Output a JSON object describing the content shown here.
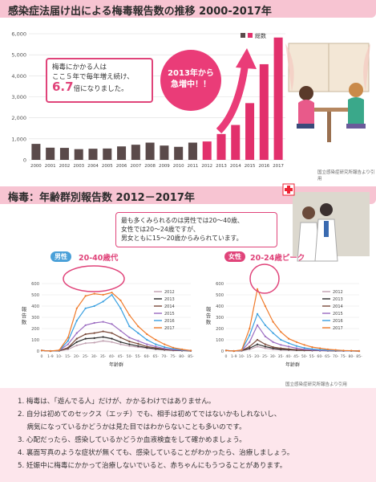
{
  "section1": {
    "title": "感染症法届け出による梅毒報告数の推移 2000-2017年"
  },
  "section2": {
    "title": "梅毒：年齢群別報告数 2012－2017年"
  },
  "callout": {
    "line1": "梅毒にかかる人は",
    "line2": "ここ５年で毎年増え続け、",
    "big": "6.7",
    "line3": "倍になりました。"
  },
  "badge": {
    "line1": "2013年から",
    "line2": "急増中！！"
  },
  "note": {
    "line1": "最も多くみられるのは男性では20～40歳、",
    "line2": "女性では20～24歳ですが、",
    "line3": "男女ともに15～20歳からみられています。"
  },
  "source1": "国立感染症研究所報告より引用",
  "source2": "国立感染症研究所報告より引用",
  "male_tag": "男性",
  "female_tag": "女性",
  "male_peak": "20-40歳代",
  "female_peak": "20-24歳ピーク",
  "list": [
    "1. 梅毒は、「遊んでる人」だけが、かかるわけではありません。",
    "2. 自分は初めてのセックス（エッチ）でも、相手は初めてではないかもしれないし、",
    "　  病気になっているかどうかは見た目ではわからないことも多いのです。",
    "3. 心配だったら、感染しているかどうか血液検査をして確かめましょう。",
    "4. 裏面写真のような症状が無くても、感染していることがわかったら、治療しましょう。",
    "5. 妊娠中に梅毒にかかって治療しないでいると、赤ちゃんにもうつることがあります。"
  ],
  "colors": {
    "accent": "#e0447a",
    "band": "#f7c4d2",
    "bar_normal": "#5a4a4a",
    "bar_recent": "#e2306c"
  },
  "chart_data": [
    {
      "type": "bar",
      "title": "",
      "legend": [
        "総数"
      ],
      "categories": [
        "2000",
        "2001",
        "2002",
        "2003",
        "2004",
        "2005",
        "2006",
        "2007",
        "2008",
        "2009",
        "2010",
        "2011",
        "2012",
        "2013",
        "2014",
        "2015",
        "2016",
        "2017"
      ],
      "values": [
        760,
        580,
        570,
        510,
        530,
        540,
        640,
        720,
        820,
        680,
        620,
        820,
        875,
        1230,
        1660,
        2700,
        4550,
        5820
      ],
      "yticks": [
        "0",
        "1,000",
        "2,000",
        "3,000",
        "4,000",
        "5,000",
        "6,000"
      ],
      "ylim": [
        0,
        6000
      ]
    },
    {
      "type": "line",
      "title": "",
      "ylabel": "報告数",
      "xlabel": "年齢群",
      "ylim": [
        0,
        600
      ],
      "yticks": [
        "0",
        "100",
        "200",
        "300",
        "400",
        "500",
        "600"
      ],
      "categories": [
        "0",
        "1-9",
        "10-",
        "15-",
        "20-",
        "25-",
        "30-",
        "35-",
        "40-",
        "45-",
        "50-",
        "55-",
        "60-",
        "65-",
        "70-",
        "75-",
        "80-",
        "85-"
      ],
      "series": [
        {
          "name": "2012",
          "values": [
            5,
            0,
            2,
            15,
            50,
            70,
            75,
            90,
            80,
            60,
            45,
            35,
            25,
            15,
            10,
            5,
            3,
            2
          ]
        },
        {
          "name": "2013",
          "values": [
            5,
            0,
            3,
            25,
            80,
            110,
            115,
            125,
            110,
            80,
            60,
            45,
            30,
            20,
            12,
            7,
            4,
            2
          ]
        },
        {
          "name": "2014",
          "values": [
            5,
            0,
            3,
            30,
            110,
            150,
            160,
            175,
            160,
            120,
            85,
            65,
            40,
            28,
            15,
            8,
            5,
            3
          ]
        },
        {
          "name": "2015",
          "values": [
            5,
            0,
            5,
            60,
            160,
            230,
            250,
            260,
            240,
            180,
            120,
            90,
            60,
            40,
            22,
            12,
            7,
            3
          ]
        },
        {
          "name": "2016",
          "values": [
            5,
            0,
            5,
            90,
            270,
            380,
            400,
            440,
            500,
            380,
            220,
            160,
            100,
            60,
            35,
            20,
            10,
            5
          ]
        },
        {
          "name": "2017",
          "values": [
            5,
            0,
            8,
            120,
            380,
            490,
            510,
            500,
            520,
            450,
            320,
            220,
            150,
            100,
            60,
            30,
            15,
            5
          ]
        }
      ]
    },
    {
      "type": "line",
      "title": "",
      "ylabel": "報告数",
      "xlabel": "年齢群",
      "ylim": [
        0,
        600
      ],
      "yticks": [
        "0",
        "100",
        "200",
        "300",
        "400",
        "500",
        "600"
      ],
      "categories": [
        "0",
        "1-9",
        "10-",
        "15-",
        "20-",
        "25-",
        "30-",
        "35-",
        "40-",
        "45-",
        "50-",
        "55-",
        "60-",
        "65-",
        "70-",
        "75-",
        "80-",
        "85-"
      ],
      "series": [
        {
          "name": "2012",
          "values": [
            5,
            0,
            3,
            15,
            40,
            25,
            15,
            10,
            8,
            6,
            5,
            4,
            3,
            2,
            2,
            1,
            1,
            0
          ]
        },
        {
          "name": "2013",
          "values": [
            5,
            0,
            3,
            25,
            60,
            40,
            25,
            15,
            12,
            8,
            6,
            5,
            4,
            3,
            2,
            1,
            1,
            0
          ]
        },
        {
          "name": "2014",
          "values": [
            5,
            0,
            4,
            40,
            100,
            60,
            35,
            25,
            18,
            12,
            8,
            6,
            5,
            3,
            2,
            1,
            1,
            0
          ]
        },
        {
          "name": "2015",
          "values": [
            5,
            0,
            5,
            80,
            230,
            130,
            80,
            55,
            40,
            25,
            15,
            10,
            6,
            4,
            3,
            2,
            1,
            0
          ]
        },
        {
          "name": "2016",
          "values": [
            5,
            0,
            8,
            140,
            330,
            230,
            160,
            100,
            70,
            45,
            28,
            18,
            12,
            8,
            5,
            3,
            2,
            0
          ]
        },
        {
          "name": "2017",
          "values": [
            5,
            0,
            10,
            200,
            550,
            400,
            260,
            170,
            110,
            80,
            55,
            35,
            25,
            15,
            10,
            5,
            3,
            0
          ]
        }
      ]
    }
  ],
  "line_colors": {
    "2012": "#c0a0b0",
    "2013": "#2a2a2a",
    "2014": "#7a4a3a",
    "2015": "#9a6ac0",
    "2016": "#3aa0e0",
    "2017": "#f07a2a"
  }
}
